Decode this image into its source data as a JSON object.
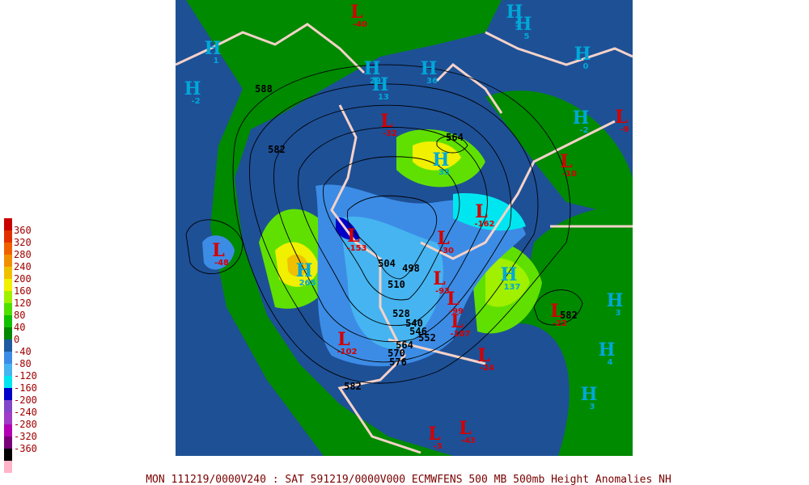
{
  "legend": {
    "labels": [
      360,
      320,
      280,
      240,
      200,
      160,
      120,
      80,
      40,
      0,
      -40,
      -80,
      -120,
      -160,
      -200,
      -240,
      -280,
      -320,
      -360
    ],
    "colors": [
      "#c80000",
      "#e03000",
      "#f06000",
      "#f09000",
      "#f0c000",
      "#f0f000",
      "#a0f000",
      "#50e000",
      "#10c000",
      "#008800",
      "#1e5aa0",
      "#3c8ce6",
      "#46b4f0",
      "#00e6f0",
      "#0000c8",
      "#8246c8",
      "#a03cc8",
      "#b400b4",
      "#780078",
      "#000000",
      "#ffb4c8"
    ]
  },
  "footer": "MON 111219/0000V240 : SAT 591219/0000V000  ECMWFENS  500 MB 500mb Height Anomalies NH",
  "centers": [
    {
      "letter": "L",
      "value": -40
    },
    {
      "letter": "H",
      "value": 5
    },
    {
      "letter": "H",
      "value": 5
    },
    {
      "letter": "H",
      "value": 1
    },
    {
      "letter": "H",
      "value": -2
    },
    {
      "letter": "H",
      "value": 0
    },
    {
      "letter": "H",
      "value": -2
    },
    {
      "letter": "L",
      "value": -9
    },
    {
      "letter": "L",
      "value": -10
    },
    {
      "letter": "H",
      "value": 29
    },
    {
      "letter": "H",
      "value": 13
    },
    {
      "letter": "H",
      "value": 36
    },
    {
      "letter": "L",
      "value": -32
    },
    {
      "letter": "H",
      "value": 33
    },
    {
      "letter": "L",
      "value": -162
    },
    {
      "letter": "L",
      "value": -48
    },
    {
      "letter": "H",
      "value": 265
    },
    {
      "letter": "L",
      "value": -153
    },
    {
      "letter": "L",
      "value": -30
    },
    {
      "letter": "H",
      "value": 137
    },
    {
      "letter": "L",
      "value": -93
    },
    {
      "letter": "L",
      "value": -99
    },
    {
      "letter": "L",
      "value": -22
    },
    {
      "letter": "H",
      "value": 3
    },
    {
      "letter": "L",
      "value": -107
    },
    {
      "letter": "L",
      "value": -102
    },
    {
      "letter": "L",
      "value": -24
    },
    {
      "letter": "H",
      "value": 4
    },
    {
      "letter": "H",
      "value": 3
    },
    {
      "letter": "L",
      "value": -3
    },
    {
      "letter": "L",
      "value": -43
    }
  ],
  "contour_labels": [
    588,
    582,
    564,
    504,
    498,
    510,
    528,
    540,
    546,
    552,
    564,
    570,
    576,
    582,
    582
  ]
}
